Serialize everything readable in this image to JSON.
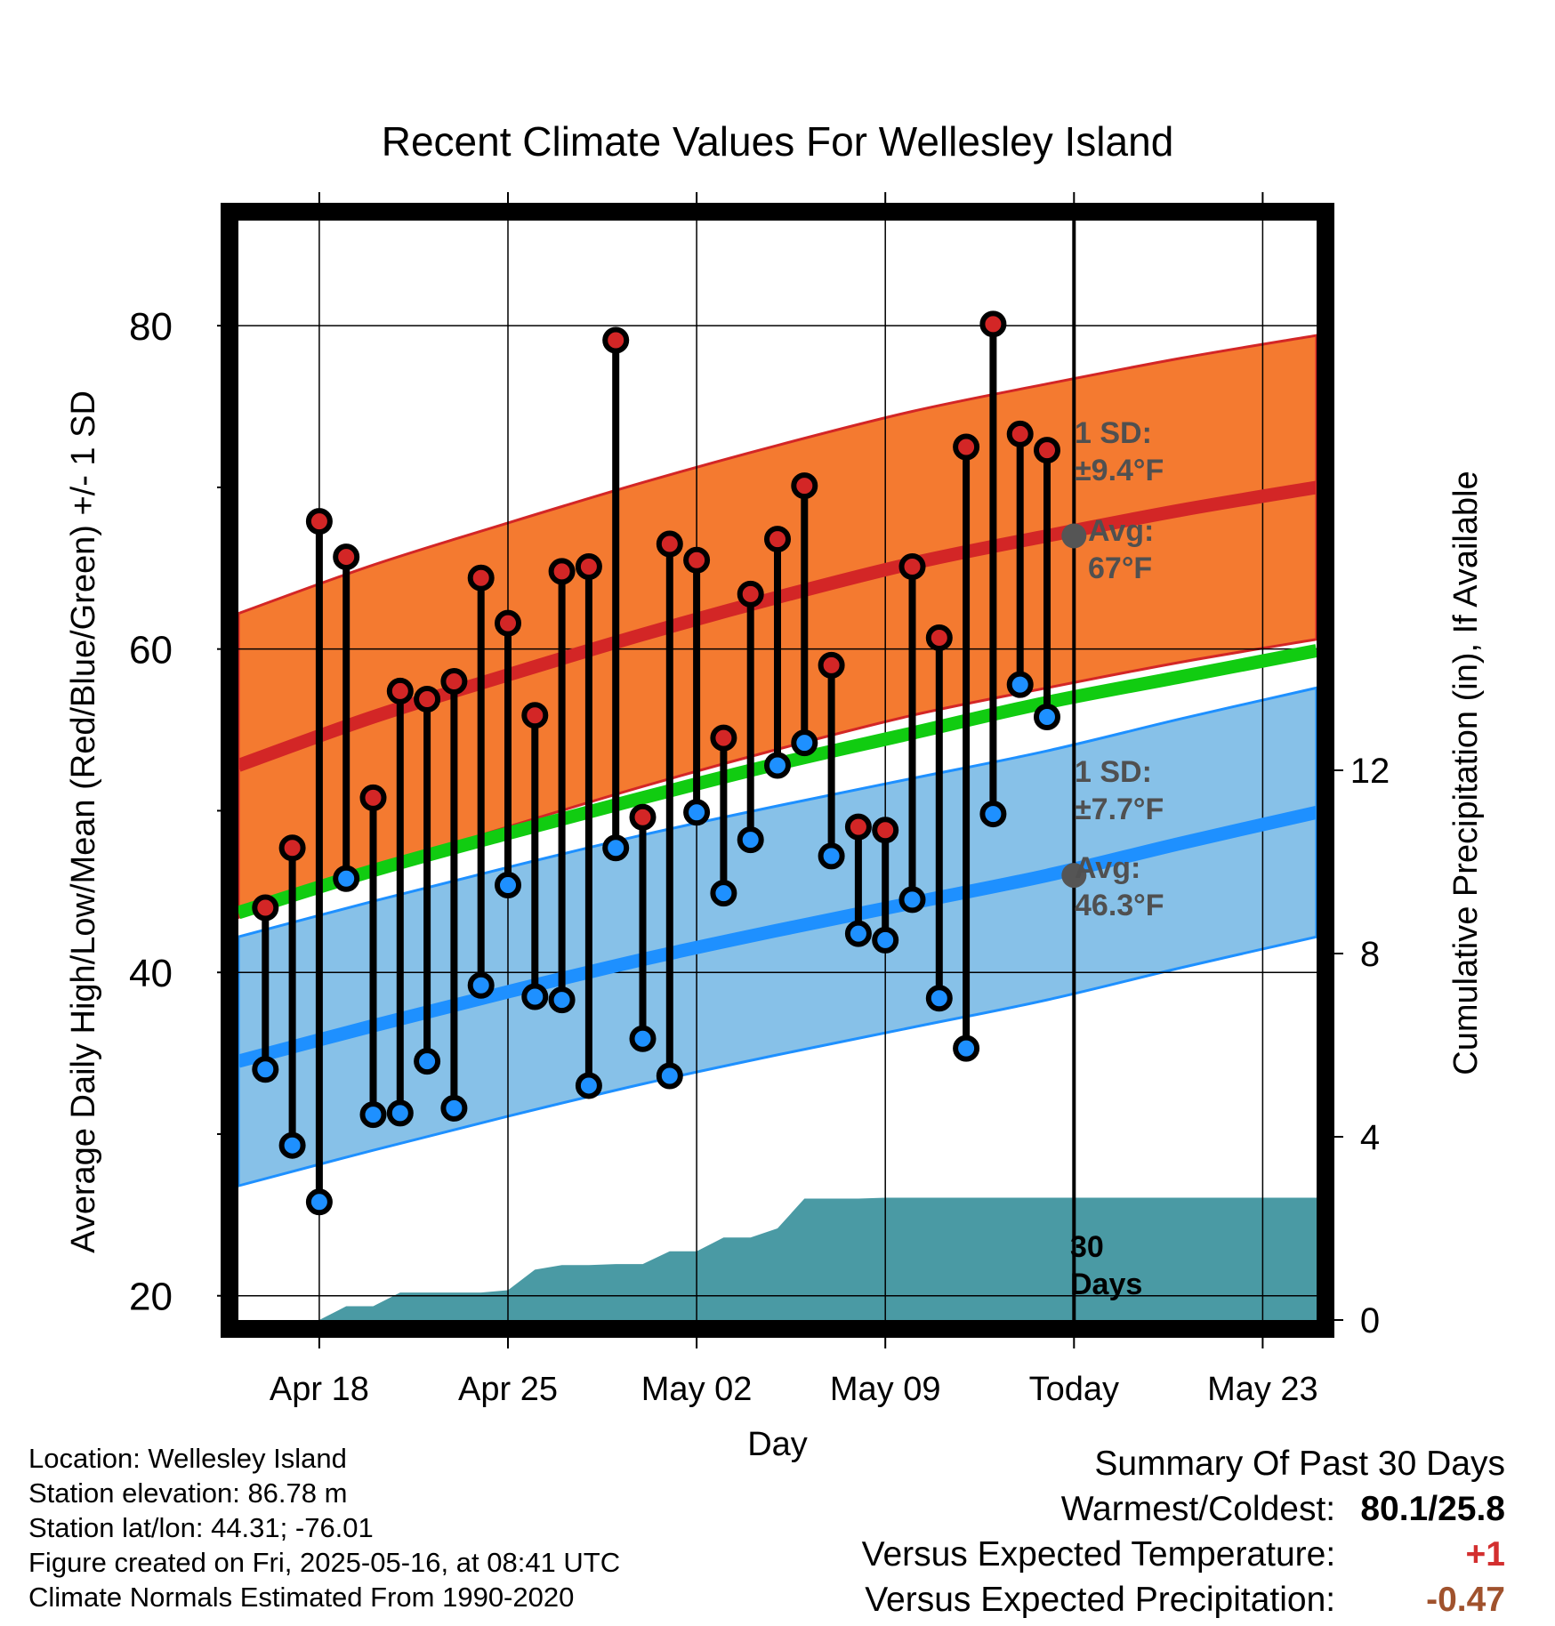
{
  "chart_data": {
    "type": "line",
    "title": "Recent Climate Values For Wellesley Island",
    "xlabel": "Day",
    "ylabel": "Average Daily High/Low/Mean (Red/Blue/Green) +/- 1 SD",
    "y2label": "Cumulative Precipitation (in), If Available",
    "ylim": [
      18.5,
      86.5
    ],
    "y2lim": [
      0,
      24
    ],
    "y_ticks": [
      "20",
      "40",
      "60",
      "80"
    ],
    "y2_ticks": [
      "0",
      "4",
      "8",
      "12"
    ],
    "x_ticks": [
      {
        "day": 3,
        "label": "Apr 18"
      },
      {
        "day": 10,
        "label": "Apr 25"
      },
      {
        "day": 17,
        "label": "May 02"
      },
      {
        "day": 24,
        "label": "May 09"
      },
      {
        "day": 31,
        "label": "Today"
      },
      {
        "day": 38,
        "label": "May 23"
      }
    ],
    "xlim": [
      0,
      40
    ],
    "today_day": 31,
    "daily": [
      {
        "day": 1,
        "high": 44.0,
        "low": 34.0
      },
      {
        "day": 2,
        "high": 47.7,
        "low": 29.3
      },
      {
        "day": 3,
        "high": 67.9,
        "low": 25.8
      },
      {
        "day": 4,
        "high": 65.7,
        "low": 45.8
      },
      {
        "day": 5,
        "high": 50.8,
        "low": 31.2
      },
      {
        "day": 6,
        "high": 57.4,
        "low": 31.3
      },
      {
        "day": 7,
        "high": 56.9,
        "low": 34.5
      },
      {
        "day": 8,
        "high": 58.0,
        "low": 31.6
      },
      {
        "day": 9,
        "high": 64.4,
        "low": 39.2
      },
      {
        "day": 10,
        "high": 61.6,
        "low": 45.4
      },
      {
        "day": 11,
        "high": 55.9,
        "low": 38.5
      },
      {
        "day": 12,
        "high": 64.8,
        "low": 38.3
      },
      {
        "day": 13,
        "high": 65.1,
        "low": 33.0
      },
      {
        "day": 14,
        "high": 79.1,
        "low": 47.7
      },
      {
        "day": 15,
        "high": 49.6,
        "low": 35.9
      },
      {
        "day": 16,
        "high": 66.5,
        "low": 33.6
      },
      {
        "day": 17,
        "high": 65.5,
        "low": 49.9
      },
      {
        "day": 18,
        "high": 54.5,
        "low": 44.9
      },
      {
        "day": 19,
        "high": 63.4,
        "low": 48.2
      },
      {
        "day": 20,
        "high": 66.8,
        "low": 52.8
      },
      {
        "day": 21,
        "high": 70.1,
        "low": 54.2
      },
      {
        "day": 22,
        "high": 59.0,
        "low": 47.2
      },
      {
        "day": 23,
        "high": 49.0,
        "low": 42.4
      },
      {
        "day": 24,
        "high": 48.8,
        "low": 42.0
      },
      {
        "day": 25,
        "high": 65.1,
        "low": 44.5
      },
      {
        "day": 26,
        "high": 60.7,
        "low": 38.4
      },
      {
        "day": 27,
        "high": 72.5,
        "low": 35.3
      },
      {
        "day": 28,
        "high": 80.1,
        "low": 49.8
      },
      {
        "day": 29,
        "high": 73.3,
        "low": 57.8
      },
      {
        "day": 30,
        "high": 72.3,
        "low": 55.8
      }
    ],
    "normals": {
      "day": [
        0,
        5,
        10,
        15,
        20,
        25,
        30,
        35,
        40
      ],
      "avg_high": [
        52.8,
        55.8,
        58.4,
        60.9,
        63.2,
        65.3,
        67.0,
        68.6,
        70.0
      ],
      "avg_low": [
        34.5,
        36.7,
        38.8,
        40.8,
        42.6,
        44.3,
        46.0,
        48.0,
        49.9
      ],
      "avg_mean": [
        43.7,
        46.3,
        48.6,
        50.8,
        52.9,
        54.8,
        56.7,
        58.3,
        59.9
      ],
      "high_sd": 9.4,
      "low_sd": 7.7
    },
    "precip_cumulative": {
      "day": [
        0,
        3,
        4,
        5,
        6,
        7,
        8,
        9,
        10,
        11,
        12,
        13,
        14,
        15,
        16,
        17,
        18,
        19,
        20,
        21,
        22,
        23,
        24,
        25,
        26,
        27,
        28,
        29,
        30,
        31,
        40
      ],
      "value": [
        0,
        0,
        0.3,
        0.3,
        0.6,
        0.6,
        0.6,
        0.6,
        0.65,
        1.1,
        1.2,
        1.2,
        1.22,
        1.22,
        1.5,
        1.5,
        1.8,
        1.8,
        2.0,
        2.65,
        2.65,
        2.65,
        2.67,
        2.67,
        2.67,
        2.67,
        2.67,
        2.67,
        2.67,
        2.67,
        2.67
      ]
    },
    "annotations": {
      "high_sd_label": "1 SD:",
      "high_sd_value": "±9.4°F",
      "high_avg_label": "Avg:",
      "high_avg_value": "67°F",
      "low_sd_label": "1 SD:",
      "low_sd_value": "±7.7°F",
      "low_avg_label": "Avg:",
      "low_avg_value": "46.3°F",
      "days_label_1": "30",
      "days_label_2": "Days"
    },
    "colors": {
      "high_band": "#f47a30",
      "high_line": "#d32626",
      "low_band": "#87c1e8",
      "low_line": "#1e90ff",
      "mean_line": "#11cc11",
      "precip": "#4a9aa4",
      "high_dot": "#d32626",
      "low_dot": "#1e90ff",
      "annotation": "#505050"
    }
  },
  "footer": {
    "location": "Location: Wellesley Island",
    "elevation": "Station elevation: 86.78 m",
    "latlon": "Station lat/lon: 44.31; -76.01",
    "created": "Figure created on Fri, 2025-05-16, at 08:41 UTC",
    "normals": "Climate Normals Estimated From 1990-2020"
  },
  "summary": {
    "title": "Summary Of Past 30 Days",
    "warm_cold_label": "Warmest/Coldest:",
    "warm_cold_value": "80.1/25.8",
    "temp_label": "Versus Expected Temperature:",
    "temp_value": "+1",
    "precip_label": "Versus Expected Precipitation:",
    "precip_value": "-0.47"
  }
}
